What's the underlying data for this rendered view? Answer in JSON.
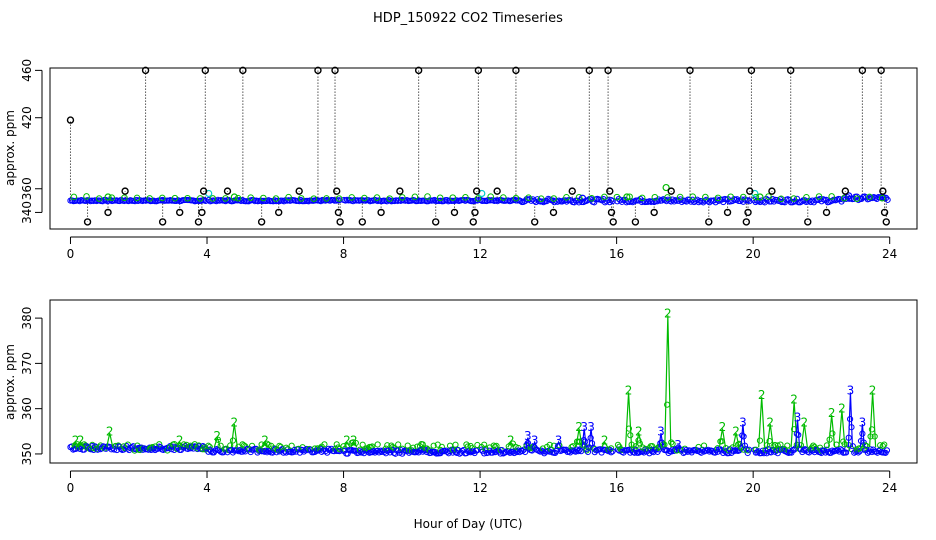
{
  "title": "HDP_150922  CO2 Timeseries",
  "colors": {
    "black": "#000000",
    "blue": "#0000ff",
    "green": "#00bb00",
    "cyan": "#00cccc"
  },
  "chart_data": [
    {
      "type": "scatter",
      "name": "top",
      "ylabel": "approx. ppm",
      "xlabel": "",
      "xlim": [
        -0.6,
        24.8
      ],
      "ylim": [
        326,
        462
      ],
      "xticks": [
        0,
        4,
        8,
        12,
        16,
        20,
        24
      ],
      "xtick_labels": [
        "0",
        "4",
        "8",
        "12",
        "16",
        "20",
        "24"
      ],
      "yticks": [
        340,
        360,
        420,
        460
      ],
      "ytick_labels": [
        "340",
        "360",
        "420",
        "460"
      ],
      "baseline": 350,
      "spikes": [
        {
          "x": 0.0,
          "y": 418
        },
        {
          "x": 0.5,
          "y": 332
        },
        {
          "x": 1.1,
          "y": 340
        },
        {
          "x": 1.6,
          "y": 358
        },
        {
          "x": 2.2,
          "y": 460
        },
        {
          "x": 2.7,
          "y": 332
        },
        {
          "x": 3.2,
          "y": 340
        },
        {
          "x": 3.75,
          "y": 332
        },
        {
          "x": 3.85,
          "y": 340
        },
        {
          "x": 3.9,
          "y": 358
        },
        {
          "x": 3.95,
          "y": 460
        },
        {
          "x": 4.6,
          "y": 358
        },
        {
          "x": 5.05,
          "y": 460
        },
        {
          "x": 5.6,
          "y": 332
        },
        {
          "x": 6.1,
          "y": 340
        },
        {
          "x": 6.7,
          "y": 358
        },
        {
          "x": 7.25,
          "y": 460
        },
        {
          "x": 7.75,
          "y": 460
        },
        {
          "x": 7.8,
          "y": 358
        },
        {
          "x": 7.85,
          "y": 340
        },
        {
          "x": 7.9,
          "y": 332
        },
        {
          "x": 8.55,
          "y": 332
        },
        {
          "x": 9.1,
          "y": 340
        },
        {
          "x": 9.65,
          "y": 358
        },
        {
          "x": 10.2,
          "y": 460
        },
        {
          "x": 10.7,
          "y": 332
        },
        {
          "x": 11.25,
          "y": 340
        },
        {
          "x": 11.8,
          "y": 332
        },
        {
          "x": 11.85,
          "y": 340
        },
        {
          "x": 11.9,
          "y": 358
        },
        {
          "x": 11.95,
          "y": 460
        },
        {
          "x": 12.5,
          "y": 358
        },
        {
          "x": 13.05,
          "y": 460
        },
        {
          "x": 13.6,
          "y": 332
        },
        {
          "x": 14.15,
          "y": 340
        },
        {
          "x": 14.7,
          "y": 358
        },
        {
          "x": 15.2,
          "y": 460
        },
        {
          "x": 15.75,
          "y": 460
        },
        {
          "x": 15.8,
          "y": 358
        },
        {
          "x": 15.85,
          "y": 340
        },
        {
          "x": 15.9,
          "y": 332
        },
        {
          "x": 16.55,
          "y": 332
        },
        {
          "x": 17.1,
          "y": 340
        },
        {
          "x": 17.6,
          "y": 358
        },
        {
          "x": 18.15,
          "y": 460
        },
        {
          "x": 18.7,
          "y": 332
        },
        {
          "x": 19.25,
          "y": 340
        },
        {
          "x": 19.8,
          "y": 332
        },
        {
          "x": 19.85,
          "y": 340
        },
        {
          "x": 19.9,
          "y": 358
        },
        {
          "x": 19.95,
          "y": 460
        },
        {
          "x": 20.55,
          "y": 358
        },
        {
          "x": 21.1,
          "y": 460
        },
        {
          "x": 21.6,
          "y": 332
        },
        {
          "x": 22.15,
          "y": 340
        },
        {
          "x": 22.7,
          "y": 358
        },
        {
          "x": 23.2,
          "y": 460
        },
        {
          "x": 23.75,
          "y": 460
        },
        {
          "x": 23.8,
          "y": 358
        },
        {
          "x": 23.85,
          "y": 340
        },
        {
          "x": 23.9,
          "y": 332
        }
      ],
      "extra_points": [
        {
          "x": 4.05,
          "y": 356,
          "series": "cyan"
        },
        {
          "x": 12.05,
          "y": 356,
          "series": "cyan"
        },
        {
          "x": 20.05,
          "y": 356,
          "series": "cyan"
        },
        {
          "x": 17.45,
          "y": 361,
          "series": "green"
        },
        {
          "x": 16.3,
          "y": 353,
          "series": "green"
        },
        {
          "x": 20.2,
          "y": 353,
          "series": "green"
        },
        {
          "x": 22.8,
          "y": 354,
          "series": "blue"
        },
        {
          "x": 1.1,
          "y": 353,
          "series": "green"
        },
        {
          "x": 4.8,
          "y": 353,
          "series": "green"
        },
        {
          "x": 15.0,
          "y": 352,
          "series": "blue"
        }
      ]
    },
    {
      "type": "scatter",
      "name": "bottom",
      "ylabel": "approx. ppm",
      "xlabel": "Hour of Day (UTC)",
      "xlim": [
        -0.6,
        24.8
      ],
      "ylim": [
        348,
        384
      ],
      "xticks": [
        0,
        4,
        8,
        12,
        16,
        20,
        24
      ],
      "xtick_labels": [
        "0",
        "4",
        "8",
        "12",
        "16",
        "20",
        "24"
      ],
      "yticks": [
        350,
        360,
        370,
        380
      ],
      "ytick_labels": [
        "350",
        "360",
        "370",
        "380"
      ],
      "green_label": "2",
      "blue_label": "3",
      "green_peaks": [
        {
          "x": 0.15,
          "y": 353
        },
        {
          "x": 0.3,
          "y": 353
        },
        {
          "x": 1.15,
          "y": 355
        },
        {
          "x": 3.2,
          "y": 353
        },
        {
          "x": 4.3,
          "y": 354
        },
        {
          "x": 4.8,
          "y": 357
        },
        {
          "x": 5.7,
          "y": 353
        },
        {
          "x": 8.1,
          "y": 353
        },
        {
          "x": 8.3,
          "y": 353
        },
        {
          "x": 14.9,
          "y": 356
        },
        {
          "x": 15.65,
          "y": 353
        },
        {
          "x": 16.35,
          "y": 364
        },
        {
          "x": 16.65,
          "y": 355
        },
        {
          "x": 17.5,
          "y": 381
        },
        {
          "x": 19.1,
          "y": 356
        },
        {
          "x": 19.5,
          "y": 355
        },
        {
          "x": 20.25,
          "y": 363
        },
        {
          "x": 20.5,
          "y": 357
        },
        {
          "x": 21.2,
          "y": 362
        },
        {
          "x": 21.5,
          "y": 357
        },
        {
          "x": 22.3,
          "y": 359
        },
        {
          "x": 22.6,
          "y": 360
        },
        {
          "x": 23.5,
          "y": 364
        },
        {
          "x": 12.9,
          "y": 353
        }
      ],
      "blue_peaks": [
        {
          "x": 13.4,
          "y": 354
        },
        {
          "x": 13.6,
          "y": 353
        },
        {
          "x": 14.3,
          "y": 353
        },
        {
          "x": 15.05,
          "y": 356
        },
        {
          "x": 15.25,
          "y": 356
        },
        {
          "x": 17.3,
          "y": 355
        },
        {
          "x": 17.8,
          "y": 352
        },
        {
          "x": 19.7,
          "y": 357
        },
        {
          "x": 21.3,
          "y": 358
        },
        {
          "x": 22.85,
          "y": 364
        },
        {
          "x": 23.2,
          "y": 357
        }
      ]
    }
  ]
}
